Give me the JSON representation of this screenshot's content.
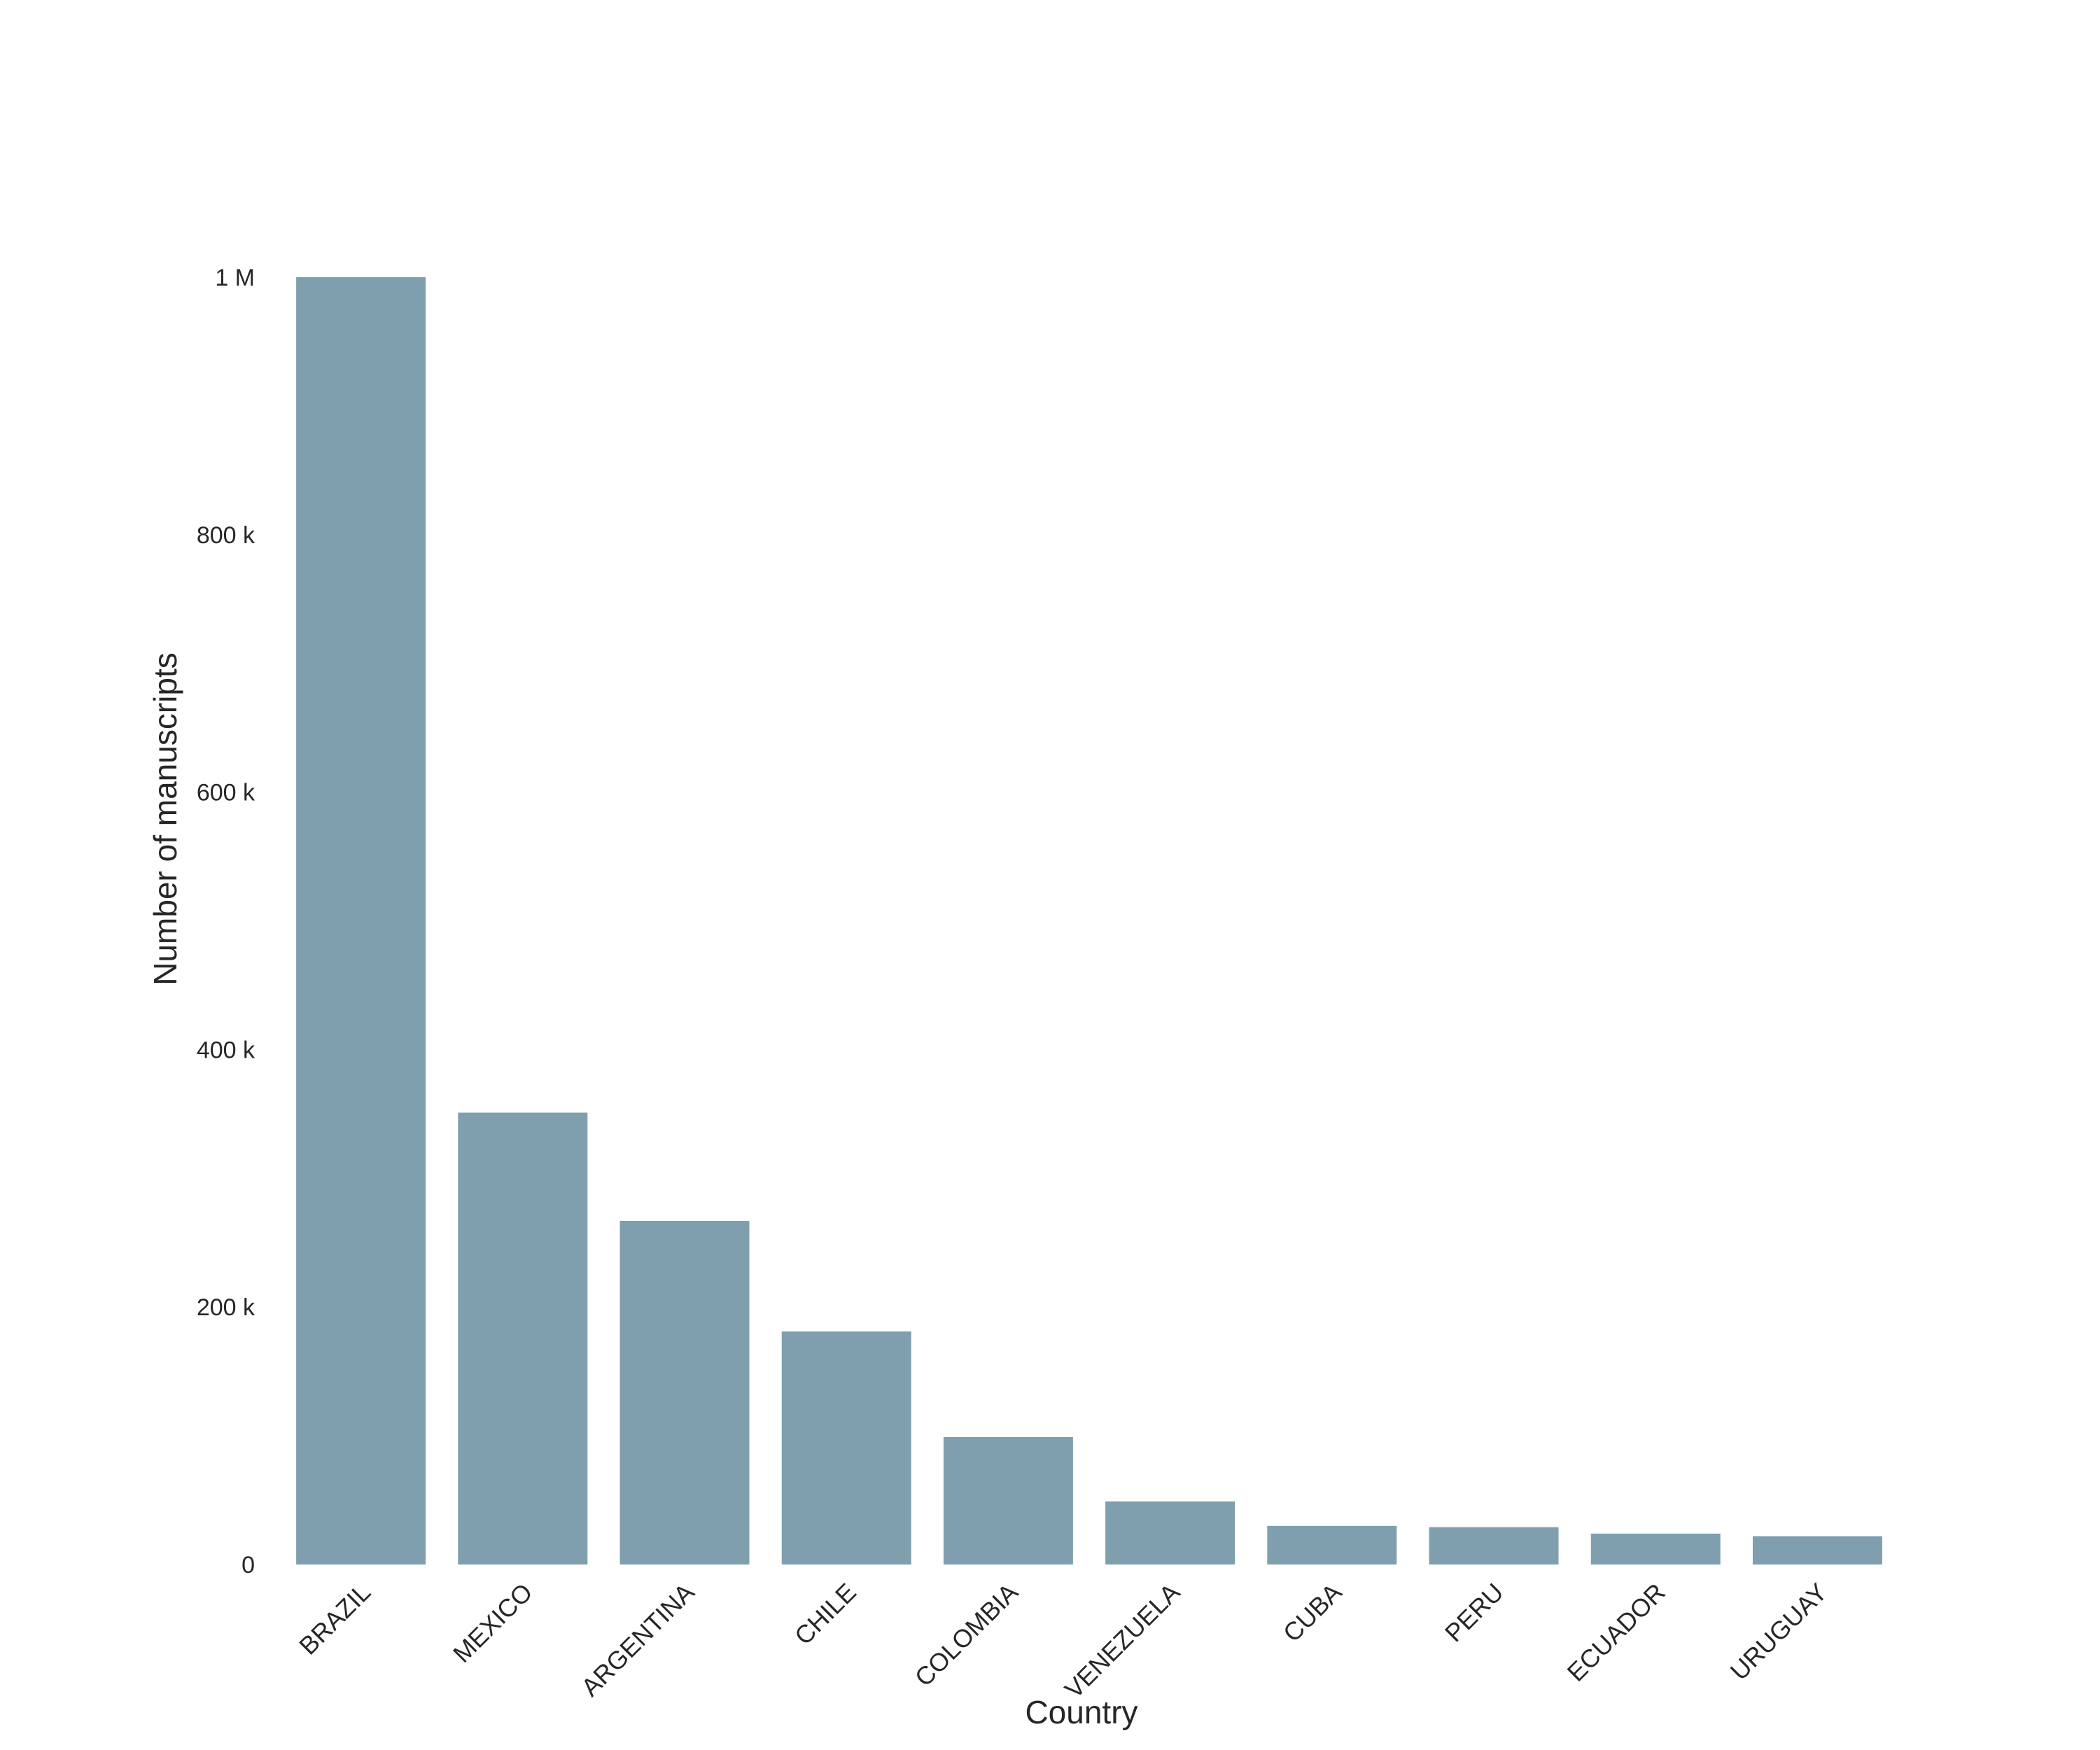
{
  "chart_data": {
    "type": "bar",
    "categories": [
      "BRAZIL",
      "MEXICO",
      "ARGENTINA",
      "CHILE",
      "COLOMBIA",
      "VENEZUELA",
      "CUBA",
      "PERU",
      "ECUADOR",
      "URUGUAY"
    ],
    "values": [
      1000000,
      351000,
      267000,
      181000,
      99000,
      49000,
      30000,
      29000,
      24000,
      22000
    ],
    "title": "",
    "xlabel": "Country",
    "ylabel": "Number of manuscripts",
    "ylim": [
      0,
      1000000
    ],
    "yticks": [
      0,
      200000,
      400000,
      600000,
      800000,
      1000000
    ],
    "ytick_labels": [
      "0",
      "200 k",
      "400 k",
      "600 k",
      "800 k",
      "1 M"
    ],
    "grid": false,
    "legend": "none",
    "bar_color": "#7f9fae"
  }
}
